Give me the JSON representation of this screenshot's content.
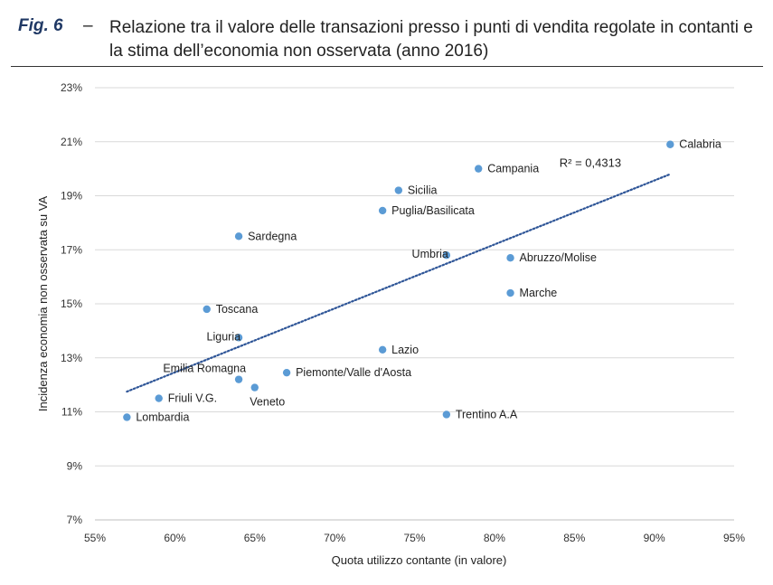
{
  "figure": {
    "label": "Fig. 6",
    "dash": "–",
    "title": "Relazione tra il valore delle transazioni presso i punti di vendita regolate in contanti e la stima dell’economia non osservata (anno 2016)"
  },
  "chart_data": {
    "type": "scatter",
    "xlabel": "Quota utilizzo contante (in valore)",
    "ylabel": "Incidenza economia non osservata su VA",
    "xlim": [
      55,
      95
    ],
    "ylim": [
      7,
      23
    ],
    "x_ticks": [
      55,
      60,
      65,
      70,
      75,
      80,
      85,
      90,
      95
    ],
    "y_ticks": [
      7,
      9,
      11,
      13,
      15,
      17,
      19,
      21,
      23
    ],
    "x_tick_labels": [
      "55%",
      "60%",
      "65%",
      "70%",
      "75%",
      "80%",
      "85%",
      "90%",
      "95%"
    ],
    "y_tick_labels": [
      "7%",
      "9%",
      "11%",
      "13%",
      "15%",
      "17%",
      "19%",
      "21%",
      "23%"
    ],
    "grid": "horizontal",
    "point_color": "#5b9bd5",
    "trendline_color": "#2e5597",
    "points": [
      {
        "label": "Calabria",
        "x": 91.0,
        "y": 20.9,
        "label_pos": "right"
      },
      {
        "label": "Campania",
        "x": 79.0,
        "y": 20.0,
        "label_pos": "right"
      },
      {
        "label": "Sicilia",
        "x": 74.0,
        "y": 19.2,
        "label_pos": "right"
      },
      {
        "label": "Puglia/Basilicata",
        "x": 73.0,
        "y": 18.45,
        "label_pos": "right"
      },
      {
        "label": "Sardegna",
        "x": 64.0,
        "y": 17.5,
        "label_pos": "right"
      },
      {
        "label": "Umbria",
        "x": 77.0,
        "y": 16.8,
        "label_pos": "left"
      },
      {
        "label": "Abruzzo/Molise",
        "x": 81.0,
        "y": 16.7,
        "label_pos": "right"
      },
      {
        "label": "Marche",
        "x": 81.0,
        "y": 15.4,
        "label_pos": "right"
      },
      {
        "label": "Toscana",
        "x": 62.0,
        "y": 14.8,
        "label_pos": "right"
      },
      {
        "label": "Liguria",
        "x": 64.0,
        "y": 13.75,
        "label_pos": "left"
      },
      {
        "label": "Lazio",
        "x": 73.0,
        "y": 13.3,
        "label_pos": "right"
      },
      {
        "label": "Piemonte/Valle d'Aosta",
        "x": 67.0,
        "y": 12.45,
        "label_pos": "right"
      },
      {
        "label": "Emilia Romagna",
        "x": 64.0,
        "y": 12.2,
        "label_pos": "above-left"
      },
      {
        "label": "Veneto",
        "x": 65.0,
        "y": 11.9,
        "label_pos": "below"
      },
      {
        "label": "Friuli V.G.",
        "x": 59.0,
        "y": 11.5,
        "label_pos": "right"
      },
      {
        "label": "Lombardia",
        "x": 57.0,
        "y": 10.8,
        "label_pos": "right"
      },
      {
        "label": "Trentino A.A",
        "x": 77.0,
        "y": 10.9,
        "label_pos": "right"
      }
    ],
    "trendline": {
      "x": [
        57,
        91
      ],
      "y": [
        11.75,
        19.8
      ],
      "style": "dotted"
    },
    "annotation": {
      "text": "R² = 0,4313",
      "x": 86.0,
      "y": 20.2
    }
  }
}
